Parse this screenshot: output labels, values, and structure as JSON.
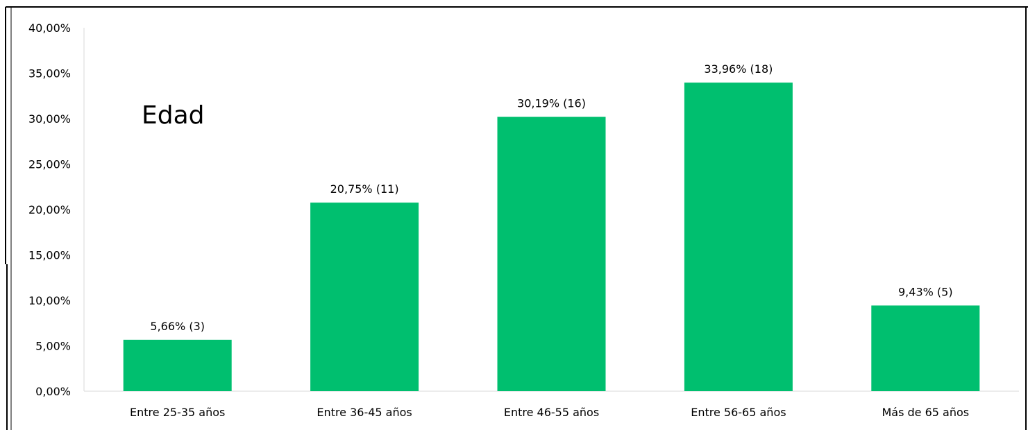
{
  "chart_data": {
    "type": "bar",
    "title": "Edad",
    "xlabel": "",
    "ylabel": "",
    "categories": [
      "Entre 25-35 años",
      "Entre 36-45 años",
      "Entre 46-55 años",
      "Entre 56-65 años",
      "Más de 65 años"
    ],
    "values": [
      5.66,
      20.75,
      30.19,
      33.96,
      9.43
    ],
    "data_labels": [
      "5,66% (3)",
      "20,75% (11)",
      "30,19% (16)",
      "33,96% (18)",
      "9,43% (5)"
    ],
    "ylim": [
      0,
      40
    ],
    "yticks": [
      0,
      5,
      10,
      15,
      20,
      25,
      30,
      35,
      40
    ],
    "ytick_labels": [
      "0,00%",
      "5,00%",
      "10,00%",
      "15,00%",
      "20,00%",
      "25,00%",
      "30,00%",
      "35,00%",
      "40,00%"
    ],
    "grid": false,
    "legend": "none",
    "bar_color": "#00BF6F"
  }
}
